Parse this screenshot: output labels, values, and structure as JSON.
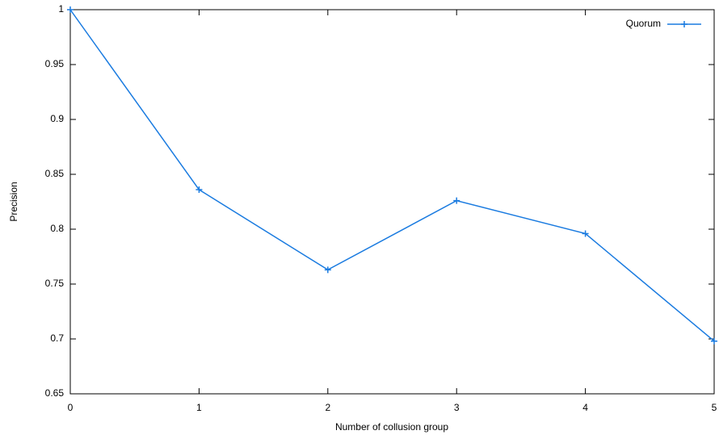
{
  "chart_data": {
    "type": "line",
    "xlabel": "Number of collusion group",
    "ylabel": "Precision",
    "x": [
      0,
      1,
      2,
      3,
      4,
      5
    ],
    "series": [
      {
        "name": "Quorum",
        "color": "#1a7be0",
        "values": [
          1.0,
          0.836,
          0.763,
          0.826,
          0.796,
          0.698
        ]
      }
    ],
    "xlim": [
      0,
      5
    ],
    "xticks": [
      0,
      1,
      2,
      3,
      4,
      5
    ],
    "ylim": [
      0.65,
      1
    ],
    "yticks": [
      0.65,
      0.7,
      0.75,
      0.8,
      0.85,
      0.9,
      0.95,
      1
    ],
    "grid": false,
    "legend": "top-right",
    "marker": "plus"
  }
}
